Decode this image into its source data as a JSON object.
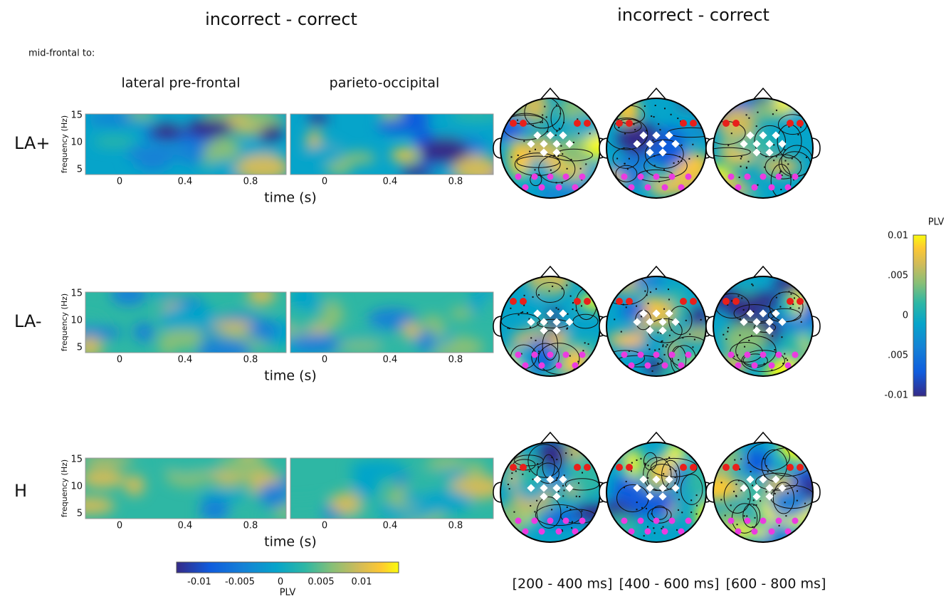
{
  "left_title": "incorrect - correct",
  "right_title": "incorrect - correct",
  "subtitle": "mid-frontal to:",
  "column_labels": [
    "lateral pre-frontal",
    "parieto-occipital"
  ],
  "row_labels": [
    "LA+",
    "LA-",
    "H"
  ],
  "y_axis_label": "frequency (Hz)",
  "y_ticks": [
    "15",
    "10",
    "5"
  ],
  "x_ticks": [
    "0",
    "0.4",
    "0.8"
  ],
  "x_axis_label": "time (s)",
  "time_windows": [
    "[200 - 400 ms]",
    "[400 - 600 ms]",
    "[600 - 800 ms]"
  ],
  "colorbar_left": {
    "label": "PLV",
    "ticks": [
      "-0.01",
      "-0.005",
      "0",
      "0.005",
      "0.01"
    ]
  },
  "colorbar_right": {
    "label": "PLV",
    "ticks": [
      "0.01",
      ".005",
      "0",
      ".005",
      "-0.01"
    ]
  }
}
